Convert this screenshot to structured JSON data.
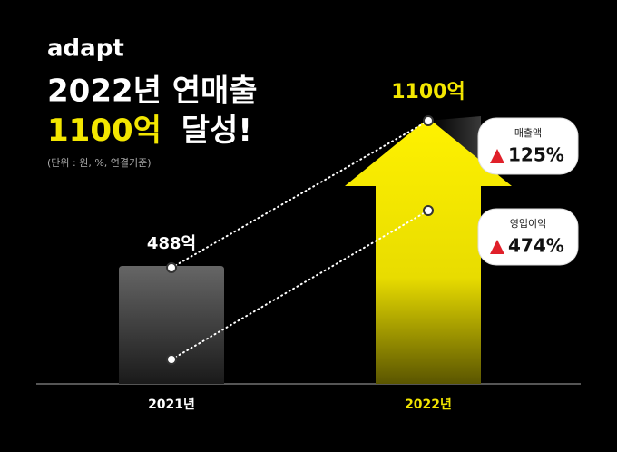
{
  "logo": "adapt",
  "chart_data": {
    "type": "bar",
    "title": "2022년 연매출",
    "headline_highlight": "1100억",
    "headline_rest": "달성!",
    "unit_note": "(단위 : 원, %, 연결기준)",
    "categories": [
      "2021년",
      "2022년"
    ],
    "values": [
      488,
      1100
    ],
    "value_labels": [
      "488억",
      "1100억"
    ],
    "colors": [
      "#5c5c5c",
      "#f3e600"
    ],
    "annotations": [
      {
        "label": "매출액",
        "value": 125,
        "value_label": "125%"
      },
      {
        "label": "영업이익",
        "value": 474,
        "value_label": "474%"
      }
    ]
  }
}
